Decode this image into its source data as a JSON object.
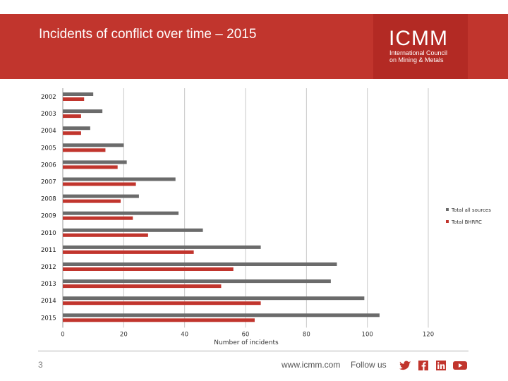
{
  "header": {
    "title": "Incidents of conflict over time – 2015",
    "logo_main": "ICMM",
    "logo_line1": "International Council",
    "logo_line2": "on Mining & Metals"
  },
  "footer": {
    "page_number": "3",
    "url": "www.icmm.com",
    "follow_label": "Follow us"
  },
  "colors": {
    "brand_red": "#c1352d",
    "series_total_all": "#6b6b6b",
    "series_total_bhrrc": "#c1352d"
  },
  "social_icons": [
    "twitter-icon",
    "facebook-icon",
    "linkedin-icon",
    "youtube-icon"
  ],
  "chart_data": {
    "type": "bar",
    "orientation": "horizontal",
    "title": "Incidents of conflict over time – 2015",
    "xlabel": "Number of incidents",
    "ylabel": "",
    "xlim": [
      0,
      120
    ],
    "xticks": [
      0,
      20,
      40,
      60,
      80,
      100,
      120
    ],
    "grid": true,
    "legend_position": "right",
    "categories": [
      "2002",
      "2003",
      "2004",
      "2005",
      "2006",
      "2007",
      "2008",
      "2009",
      "2010",
      "2011",
      "2012",
      "2013",
      "2014",
      "2015"
    ],
    "series": [
      {
        "name": "Total all sources",
        "color": "#6b6b6b",
        "values": [
          10,
          13,
          9,
          20,
          21,
          37,
          25,
          38,
          46,
          65,
          90,
          88,
          99,
          104
        ]
      },
      {
        "name": "Total BHRRC",
        "color": "#c1352d",
        "values": [
          7,
          6,
          6,
          14,
          18,
          24,
          19,
          23,
          28,
          43,
          56,
          52,
          65,
          63
        ]
      }
    ]
  }
}
